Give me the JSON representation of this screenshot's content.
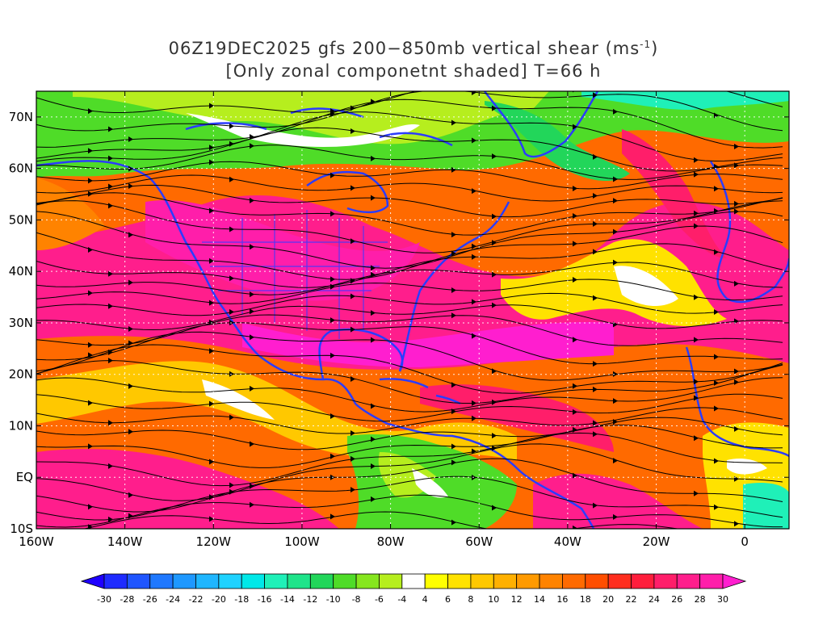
{
  "title": {
    "line1_prefix": "06Z19DEC2025 gfs 200−850mb vertical shear (ms",
    "line1_sup": "-1",
    "line1_suffix": ")",
    "line2": "[Only zonal componetnt shaded] T=66 h"
  },
  "axes": {
    "lon_labels": [
      "160W",
      "140W",
      "120W",
      "100W",
      "80W",
      "60W",
      "40W",
      "20W",
      "0"
    ],
    "lat_labels": [
      "70N",
      "60N",
      "50N",
      "40N",
      "30N",
      "20N",
      "10N",
      "EQ",
      "10S"
    ],
    "lon_range": [
      -160,
      10
    ],
    "lat_range": [
      -10,
      75
    ]
  },
  "colorbar": {
    "labels": [
      "-30",
      "-28",
      "-26",
      "-24",
      "-22",
      "-20",
      "-18",
      "-16",
      "-14",
      "-12",
      "-10",
      "-8",
      "-6",
      "-4",
      "4",
      "6",
      "8",
      "10",
      "12",
      "14",
      "16",
      "18",
      "20",
      "22",
      "24",
      "26",
      "28",
      "30"
    ],
    "colors": [
      "#1e2bff",
      "#1f55ff",
      "#1f78ff",
      "#1e98ff",
      "#1fb6ff",
      "#1fd2ff",
      "#00e8e8",
      "#1ff0b8",
      "#1fe48a",
      "#22d65a",
      "#4fdc28",
      "#86e61e",
      "#b6ee1e",
      "#ffffff",
      "#ffff00",
      "#ffe200",
      "#ffc800",
      "#ffb000",
      "#ff9a00",
      "#ff8300",
      "#ff6a00",
      "#ff4e00",
      "#ff2e1e",
      "#ff1e3c",
      "#ff1e6a",
      "#ff1e8c",
      "#ff1eaa"
    ],
    "under_color": "#1e00ff",
    "over_color": "#ff1ecf"
  },
  "colors": {
    "coastline": "#2b3cff",
    "grid": "#ffffff",
    "streamline": "#000000"
  }
}
